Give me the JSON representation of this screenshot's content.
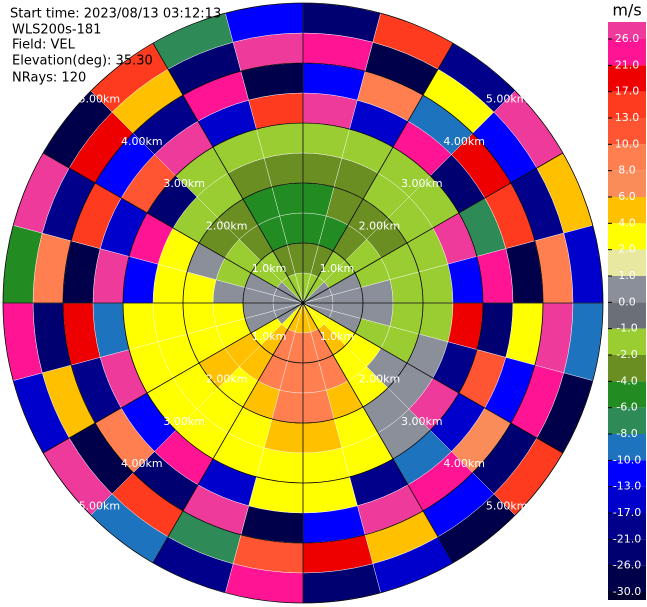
{
  "header": {
    "start_time": "Start time: 2023/08/13 03:12:13",
    "instrument": "WLS200s-181",
    "field": "Field: VEL",
    "elevation": "Elevation(deg): 35.30",
    "nrays": "NRays: 120"
  },
  "chart_data": {
    "type": "ppi",
    "rlim": [
      0,
      5
    ],
    "rings": [
      {
        "value": 1,
        "label": "1.0km"
      },
      {
        "value": 2,
        "label": "2.00km"
      },
      {
        "value": 3,
        "label": "3.00km"
      },
      {
        "value": 4,
        "label": "4.00km"
      },
      {
        "value": 5,
        "label": "5.00km"
      }
    ],
    "colorbar": {
      "title": "m/s",
      "ticks": [
        {
          "value": 26,
          "label": "26.0"
        },
        {
          "value": 21,
          "label": "21.0"
        },
        {
          "value": 17,
          "label": "17.0"
        },
        {
          "value": 13,
          "label": "13.0"
        },
        {
          "value": 10,
          "label": "10.0"
        },
        {
          "value": 8,
          "label": "8.0"
        },
        {
          "value": 6,
          "label": "6.0"
        },
        {
          "value": 4,
          "label": "4.0"
        },
        {
          "value": 2,
          "label": "2.0"
        },
        {
          "value": 1,
          "label": "1.0"
        },
        {
          "value": 0,
          "label": "0.0"
        },
        {
          "value": -1,
          "label": "-1.0"
        },
        {
          "value": -2,
          "label": "-2.0"
        },
        {
          "value": -4,
          "label": "-4.0"
        },
        {
          "value": -6,
          "label": "-6.0"
        },
        {
          "value": -8,
          "label": "-8.0"
        },
        {
          "value": -10,
          "label": "-10.0"
        },
        {
          "value": -13,
          "label": "-13.0"
        },
        {
          "value": -17,
          "label": "-17.0"
        },
        {
          "value": -21,
          "label": "-21.0"
        },
        {
          "value": -26,
          "label": "-26.0"
        },
        {
          "value": -30,
          "label": "-30.0"
        }
      ],
      "colors": [
        "#ee3a9a",
        "#ff1493",
        "#ee0000",
        "#ff3b1f",
        "#ff5533",
        "#ff7f50",
        "#fa8c5a",
        "#ffc000",
        "#ffff00",
        "#e8e8a0",
        "#8a8f99",
        "#6b6f78",
        "#9acd32",
        "#6b8e23",
        "#228b22",
        "#2e8b57",
        "#1e73be",
        "#0000ff",
        "#0000cd",
        "#00008b",
        "#000070",
        "#00004a",
        "#00002e"
      ]
    },
    "field": [
      [
        -2,
        -4,
        -6,
        -6,
        -4,
        -2,
        26,
        -13,
        21,
        -26
      ],
      [
        -2,
        -4,
        -6,
        -4,
        -4,
        -2,
        -17,
        8,
        -30,
        13
      ],
      [
        -2,
        -2,
        -4,
        -4,
        -2,
        -2,
        21,
        -10,
        2,
        -21
      ],
      [
        0,
        -2,
        -2,
        -4,
        -2,
        -2,
        -26,
        17,
        -13,
        26
      ],
      [
        0,
        0,
        -2,
        -2,
        -2,
        26,
        -8,
        13,
        -21,
        4
      ],
      [
        0,
        0,
        0,
        -2,
        -2,
        -13,
        21,
        -30,
        8,
        -17
      ],
      [
        0,
        0,
        0,
        -2,
        -2,
        17,
        -26,
        2,
        26,
        -10
      ],
      [
        0,
        0,
        -2,
        -2,
        0,
        -21,
        10,
        -13,
        21,
        -30
      ],
      [
        2,
        2,
        2,
        0,
        0,
        26,
        -17,
        6,
        -26,
        13
      ],
      [
        2,
        4,
        2,
        2,
        0,
        0,
        -10,
        21,
        -13,
        -30
      ],
      [
        4,
        8,
        8,
        4,
        2,
        2,
        -21,
        26,
        4,
        -17
      ],
      [
        4,
        8,
        8,
        8,
        4,
        2,
        2,
        -13,
        17,
        -26
      ],
      [
        4,
        8,
        8,
        8,
        4,
        2,
        2,
        -30,
        10,
        21
      ],
      [
        4,
        8,
        8,
        4,
        2,
        2,
        -17,
        26,
        -8,
        -21
      ],
      [
        2,
        4,
        4,
        2,
        2,
        2,
        21,
        -26,
        13,
        -10
      ],
      [
        0,
        2,
        4,
        4,
        2,
        2,
        -13,
        8,
        -30,
        26
      ],
      [
        0,
        0,
        2,
        2,
        2,
        2,
        26,
        -21,
        4,
        -17
      ],
      [
        0,
        0,
        2,
        2,
        2,
        2,
        -10,
        17,
        -26,
        21
      ],
      [
        0,
        0,
        0,
        2,
        2,
        -13,
        26,
        -30,
        8,
        -6
      ],
      [
        0,
        0,
        -2,
        0,
        2,
        21,
        -17,
        13,
        -21,
        26
      ],
      [
        0,
        -2,
        -2,
        -4,
        -2,
        -26,
        10,
        -13,
        17,
        -30
      ],
      [
        -2,
        -2,
        -4,
        -4,
        -2,
        -2,
        26,
        -21,
        4,
        13
      ],
      [
        -2,
        -4,
        -6,
        -6,
        -4,
        -2,
        -17,
        21,
        -26,
        -8
      ],
      [
        -2,
        -4,
        -6,
        -6,
        -4,
        -2,
        13,
        -30,
        26,
        -13
      ]
    ]
  }
}
